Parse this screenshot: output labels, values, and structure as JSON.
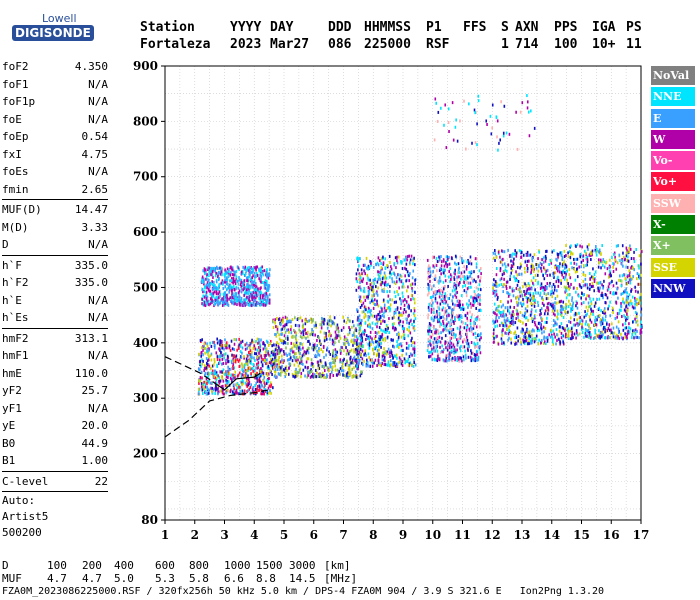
{
  "logo": {
    "line1": "Lowell",
    "line2": "DIGISONDE"
  },
  "header": {
    "labels": [
      "Station",
      "YYYY",
      "DAY",
      "DDD",
      "HHMMSS",
      "P1",
      "FFS",
      "S",
      "AXN",
      "PPS",
      "IGA",
      "PS"
    ],
    "values": [
      "Fortaleza",
      "2023",
      "Mar27",
      "086",
      "225000",
      "RSF",
      "",
      "1",
      "714",
      "100",
      "10+",
      "11"
    ]
  },
  "params_a": [
    {
      "name": "foF2",
      "value": "4.350"
    },
    {
      "name": "foF1",
      "value": "N/A"
    },
    {
      "name": "foF1p",
      "value": "N/A"
    },
    {
      "name": "foE",
      "value": "N/A"
    },
    {
      "name": "foEp",
      "value": "0.54"
    },
    {
      "name": "fxI",
      "value": "4.75"
    },
    {
      "name": "foEs",
      "value": "N/A"
    },
    {
      "name": "fmin",
      "value": "2.65"
    }
  ],
  "params_b": [
    {
      "name": "MUF(D)",
      "value": "14.47"
    },
    {
      "name": "M(D)",
      "value": "3.33"
    },
    {
      "name": "D",
      "value": "N/A"
    }
  ],
  "params_c": [
    {
      "name": "h`F",
      "value": "335.0"
    },
    {
      "name": "h`F2",
      "value": "335.0"
    },
    {
      "name": "h`E",
      "value": "N/A"
    },
    {
      "name": "h`Es",
      "value": "N/A"
    }
  ],
  "params_d": [
    {
      "name": "hmF2",
      "value": "313.1"
    },
    {
      "name": "hmF1",
      "value": "N/A"
    },
    {
      "name": "hmE",
      "value": "110.0"
    },
    {
      "name": "yF2",
      "value": "25.7"
    },
    {
      "name": "yF1",
      "value": "N/A"
    },
    {
      "name": "yE",
      "value": "20.0"
    },
    {
      "name": "B0",
      "value": "44.9"
    },
    {
      "name": "B1",
      "value": "1.00"
    }
  ],
  "clevel": {
    "name": "C-level",
    "value": "22"
  },
  "auto": [
    "Auto:",
    "Artist5",
    "500200"
  ],
  "legend": [
    {
      "label": "NoVal",
      "color": "#808080"
    },
    {
      "label": "NNE",
      "color": "#00e5ff"
    },
    {
      "label": "E",
      "color": "#3aa0ff"
    },
    {
      "label": "W",
      "color": "#b000a8"
    },
    {
      "label": "Vo-",
      "color": "#ff40b0"
    },
    {
      "label": "Vo+",
      "color": "#ff1040"
    },
    {
      "label": "SSW",
      "color": "#ffb0b0"
    },
    {
      "label": "X-",
      "color": "#008000"
    },
    {
      "label": "X+",
      "color": "#80c060"
    },
    {
      "label": "SSE",
      "color": "#d4d400"
    },
    {
      "label": "NNW",
      "color": "#1010c0"
    }
  ],
  "bottom_table": {
    "d_label": "D",
    "d_values": [
      "100",
      "200",
      "400",
      "600",
      "800",
      "1000",
      "1500",
      "3000",
      "[km]"
    ],
    "muf_label": "MUF",
    "muf_values": [
      "4.7",
      "4.7",
      "5.0",
      "5.3",
      "5.8",
      "6.6",
      "8.8",
      "14.5",
      "[MHz]"
    ]
  },
  "footer": "FZA0M_2023086225000.RSF / 320fx256h 50 kHz 5.0 km / DPS-4 FZA0M 904 / 3.9 S 321.6 E   Ion2Png 1.3.20",
  "chart_data": {
    "type": "scatter",
    "xlim": [
      1,
      17
    ],
    "ylim": [
      80,
      900
    ],
    "x_ticks": [
      1,
      2,
      3,
      4,
      5,
      6,
      7,
      8,
      9,
      10,
      11,
      12,
      13,
      14,
      15,
      16,
      17
    ],
    "y_ticks": [
      80,
      200,
      300,
      400,
      500,
      600,
      700,
      800,
      900
    ],
    "grid": true,
    "echo_clusters": [
      {
        "x": [
          2.1,
          4.6
        ],
        "y": [
          310,
          410
        ],
        "colors": [
          "W",
          "E",
          "SSE",
          "Vo+",
          "NNW",
          "NNE"
        ]
      },
      {
        "x": [
          2.2,
          4.5
        ],
        "y": [
          470,
          540
        ],
        "colors": [
          "W",
          "NNE",
          "E"
        ]
      },
      {
        "x": [
          4.6,
          7.6
        ],
        "y": [
          340,
          450
        ],
        "colors": [
          "SSE",
          "NNW",
          "W",
          "E",
          "X+"
        ]
      },
      {
        "x": [
          7.4,
          9.4
        ],
        "y": [
          360,
          560
        ],
        "colors": [
          "SSE",
          "NNE",
          "NNW",
          "W",
          "E"
        ]
      },
      {
        "x": [
          9.8,
          11.6
        ],
        "y": [
          370,
          560
        ],
        "colors": [
          "SSW",
          "NNE",
          "NNW",
          "E",
          "W"
        ]
      },
      {
        "x": [
          12,
          14.4
        ],
        "y": [
          400,
          570
        ],
        "colors": [
          "NNW",
          "E",
          "NNE",
          "W",
          "SSE"
        ]
      },
      {
        "x": [
          14.4,
          17
        ],
        "y": [
          410,
          580
        ],
        "colors": [
          "SSE",
          "E",
          "NNE",
          "NNW",
          "W"
        ]
      },
      {
        "x": [
          10,
          13.4
        ],
        "y": [
          750,
          850
        ],
        "colors": [
          "NNE",
          "NNW",
          "W",
          "SSW"
        ]
      }
    ],
    "trace_curves": [
      {
        "style": "dashed",
        "points": [
          [
            1,
            230
          ],
          [
            1.8,
            260
          ],
          [
            2.5,
            295
          ],
          [
            3.2,
            305
          ],
          [
            4,
            310
          ],
          [
            4.5,
            315
          ]
        ]
      },
      {
        "style": "dashed",
        "points": [
          [
            1,
            375
          ],
          [
            1.6,
            360
          ],
          [
            2.2,
            345
          ],
          [
            2.6,
            330
          ]
        ]
      },
      {
        "style": "solid",
        "points": [
          [
            2.6,
            330
          ],
          [
            3.0,
            315
          ],
          [
            3.4,
            335
          ],
          [
            4.0,
            338
          ],
          [
            4.2,
            345
          ]
        ]
      }
    ]
  }
}
